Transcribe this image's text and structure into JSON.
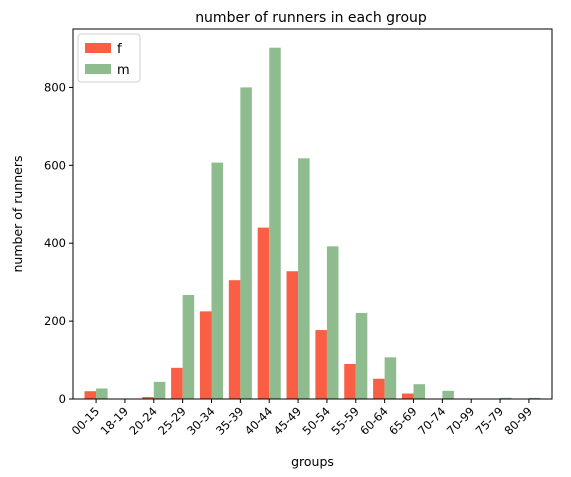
{
  "chart_data": {
    "type": "bar",
    "title": "number of runners in each group",
    "xlabel": "groups",
    "ylabel": "number of runners",
    "categories": [
      "00-15",
      "18-19",
      "20-24",
      "25-29",
      "30-34",
      "35-39",
      "40-44",
      "45-49",
      "50-54",
      "55-59",
      "60-64",
      "65-69",
      "70-74",
      "70-99",
      "75-79",
      "80-99"
    ],
    "series": [
      {
        "name": "f",
        "color": "#fa5f46",
        "values": [
          20,
          0,
          5,
          80,
          225,
          305,
          440,
          328,
          177,
          90,
          52,
          14,
          0,
          0,
          0,
          0
        ]
      },
      {
        "name": "m",
        "color": "#8fbc8f",
        "values": [
          27,
          0,
          44,
          267,
          607,
          800,
          902,
          618,
          392,
          221,
          107,
          38,
          21,
          0,
          3,
          3
        ]
      }
    ],
    "ylim": [
      0,
      950
    ],
    "yticks": [
      0,
      200,
      400,
      600,
      800
    ],
    "grid": false,
    "legend_position": "top-left"
  }
}
